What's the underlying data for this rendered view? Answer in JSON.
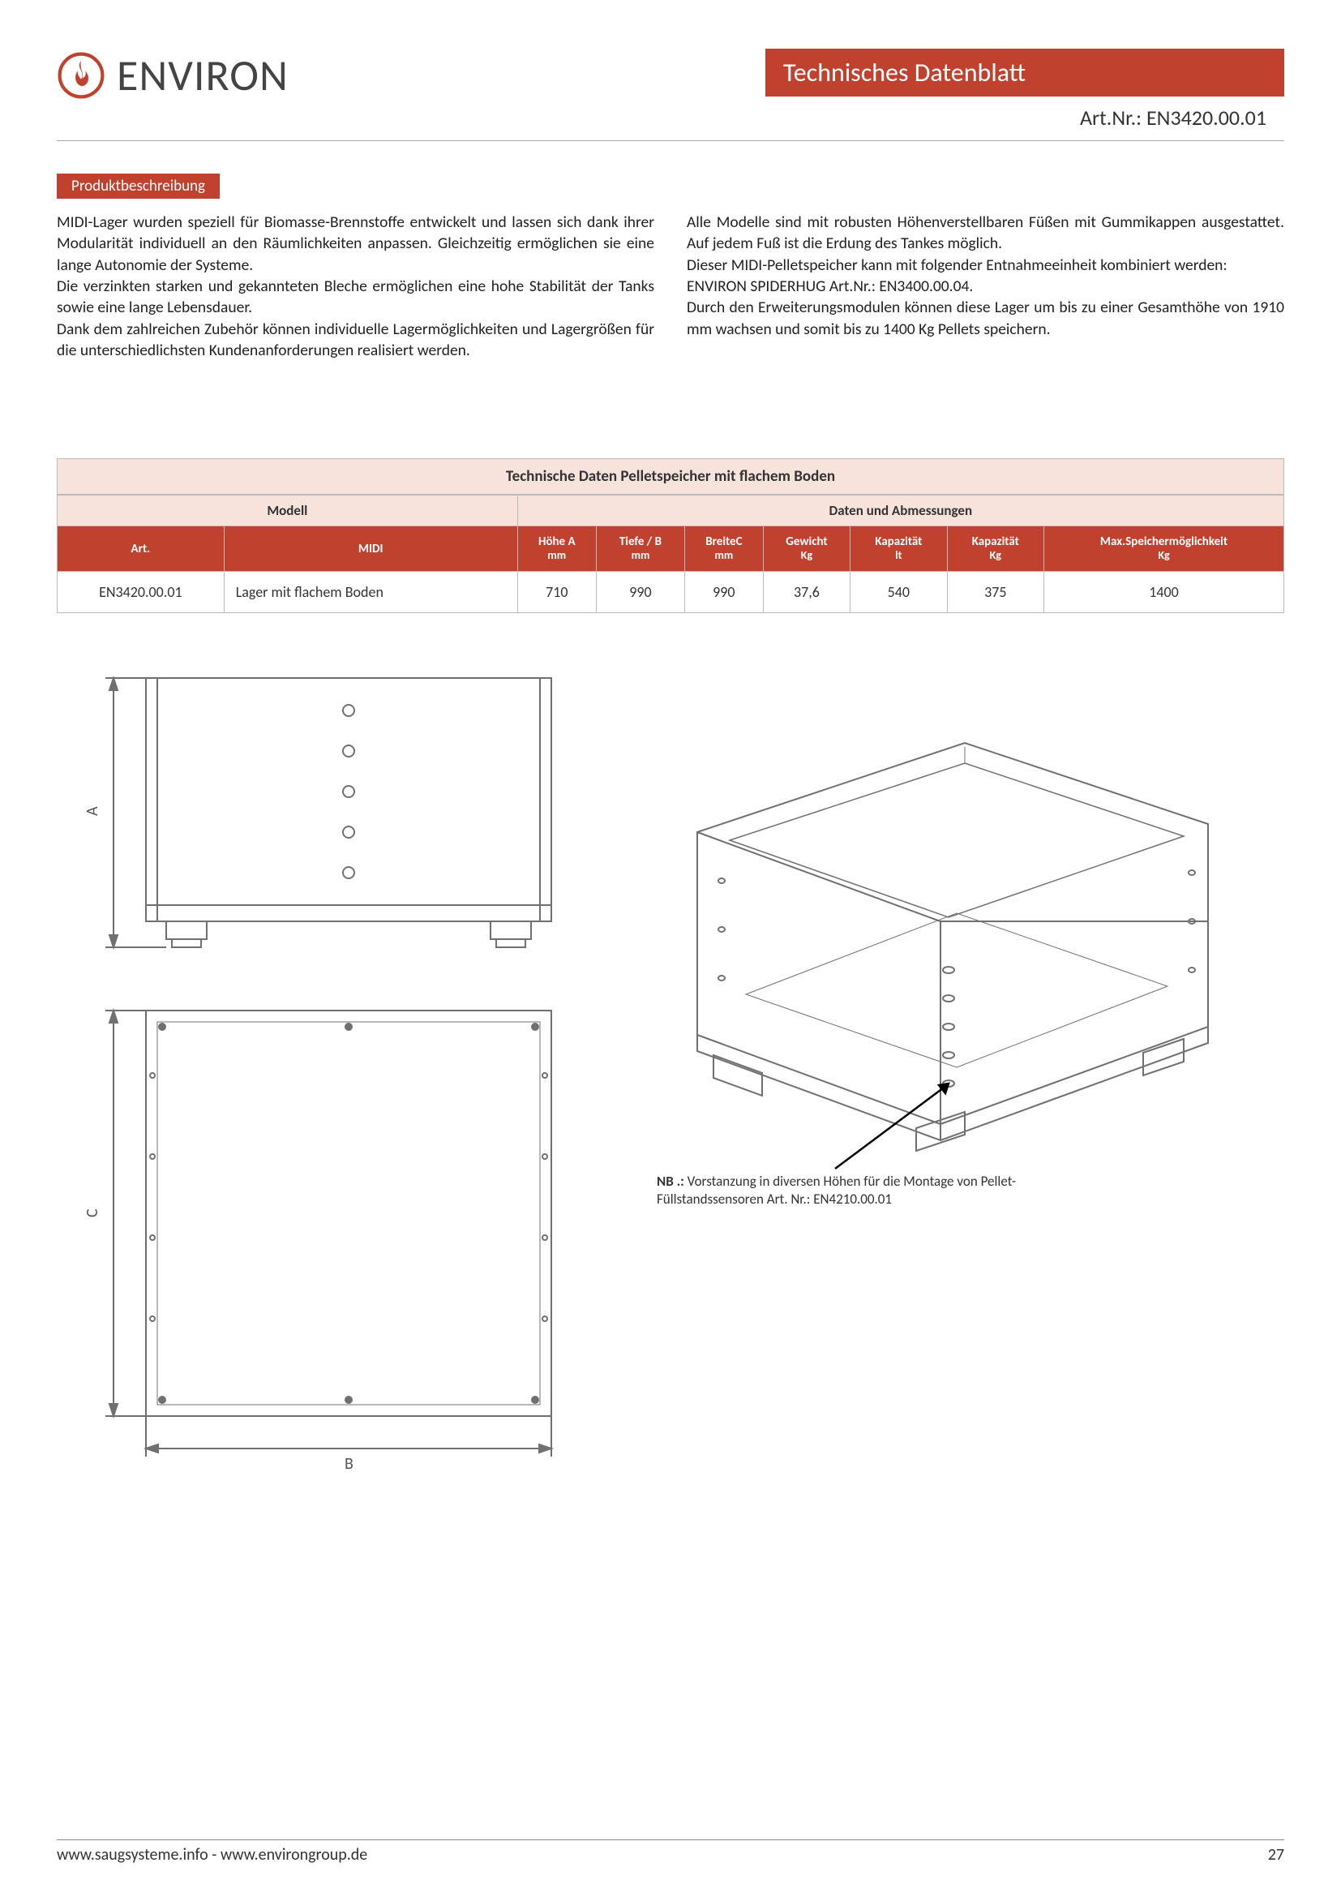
{
  "brand": "ENVIRON",
  "header": {
    "title": "Technisches Datenblatt",
    "art_label": "Art.Nr.: EN3420.00.01"
  },
  "section_label": "Produktbeschreibung",
  "body": {
    "left": "MIDI-Lager wurden speziell für Biomasse-Brennstoffe entwickelt und lassen sich dank ihrer Modularität individuell an den Räumlichkeiten anpassen. Gleichzeitig ermöglichen sie eine lange Autonomie der Systeme.\nDie verzinkten starken und gekannteten Bleche ermöglichen eine hohe Stabilität der Tanks sowie eine lange Lebensdauer.\nDank dem zahlreichen Zubehör können individuelle Lagermöglichkeiten und Lagergrößen für die unterschiedlichsten Kundenanforderungen realisiert werden.",
    "right": "Alle Modelle sind mit robusten Höhenverstellbaren Füßen mit Gummikappen ausgestattet. Auf jedem Fuß ist die Erdung des Tankes möglich.\nDieser MIDI-Pelletspeicher kann mit folgender Entnahmeeinheit kombiniert werden:\nENVIRON SPIDERHUG Art.Nr.: EN3400.00.04.\nDurch den Erweiterungsmodulen können diese Lager um bis zu einer Gesamthöhe von 1910 mm wachsen und somit bis zu 1400 Kg Pellets speichern."
  },
  "table": {
    "title": "Technische Daten Pelletspeicher mit flachem Boden",
    "group_headers": {
      "modell": "Modell",
      "daten": "Daten und Abmessungen"
    },
    "columns": [
      {
        "key": "art",
        "label": "Art.",
        "unit": ""
      },
      {
        "key": "midi",
        "label": "MIDI",
        "unit": ""
      },
      {
        "key": "hoehe",
        "label": "Höhe A",
        "unit": "mm"
      },
      {
        "key": "tiefe",
        "label": "Tiefe / B",
        "unit": "mm"
      },
      {
        "key": "breite",
        "label": "BreiteC",
        "unit": "mm"
      },
      {
        "key": "gewicht",
        "label": "Gewicht",
        "unit": "Kg"
      },
      {
        "key": "kap_lt",
        "label": "Kapazität",
        "unit": "lt"
      },
      {
        "key": "kap_kg",
        "label": "Kapazität",
        "unit": "Kg"
      },
      {
        "key": "max",
        "label": "Max.Speichermöglichkeit",
        "unit": "Kg"
      }
    ],
    "row": {
      "art": "EN3420.00.01",
      "midi": "Lager mit flachem Boden",
      "hoehe": "710",
      "tiefe": "990",
      "breite": "990",
      "gewicht": "37,6",
      "kap_lt": "540",
      "kap_kg": "375",
      "max": "1400"
    }
  },
  "diagram_labels": {
    "A": "A",
    "B": "B",
    "C": "C"
  },
  "note_prefix": "NB .:",
  "note_text": " Vorstanzung in diversen Höhen für die Montage  von Pellet-Füllstandssensoren  Art. Nr.: EN4210.00.01",
  "footer": {
    "urls": "www.saugsysteme.info - www.environgroup.de",
    "page": "27"
  },
  "colors": {
    "accent": "#c0422e",
    "tint": "#f7e3dc",
    "line": "#707070"
  }
}
